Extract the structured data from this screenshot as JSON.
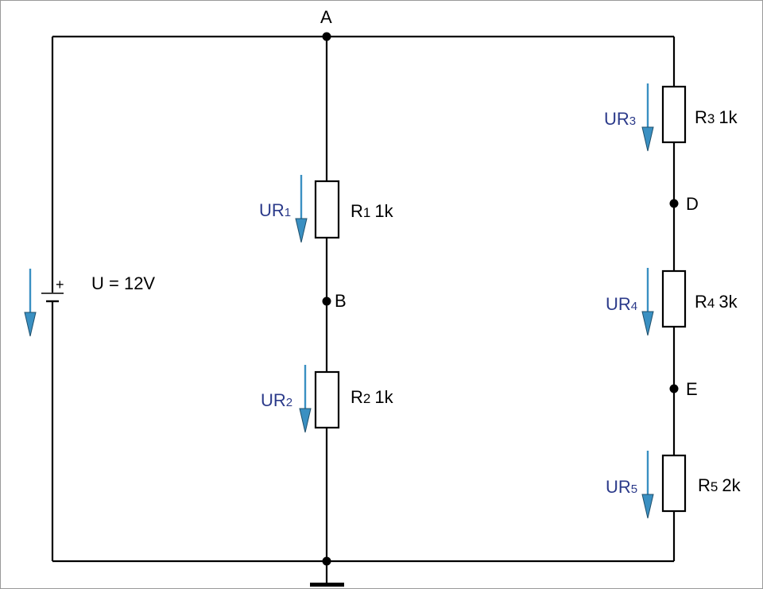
{
  "colors": {
    "wire": "#000000",
    "arrow": "#3a90c2",
    "label_blue": "#2b3a8a",
    "border": "#999999"
  },
  "nodes": {
    "a": "A",
    "b": "B",
    "d": "D",
    "e": "E"
  },
  "source": {
    "plus": "+",
    "label": "U = 12V"
  },
  "resistors": {
    "r1": {
      "letter": "R",
      "sub": "1",
      "value": "1k"
    },
    "r2": {
      "letter": "R",
      "sub": "2",
      "value": "1k"
    },
    "r3": {
      "letter": "R",
      "sub": "3",
      "value": "1k"
    },
    "r4": {
      "letter": "R",
      "sub": "4",
      "value": "3k"
    },
    "r5": {
      "letter": "R",
      "sub": "5",
      "value": "2k"
    }
  },
  "voltages": {
    "ur1": {
      "main": "UR",
      "sub": "1"
    },
    "ur2": {
      "main": "UR",
      "sub": "2"
    },
    "ur3": {
      "main": "UR",
      "sub": "3"
    },
    "ur4": {
      "main": "UR",
      "sub": "4"
    },
    "ur5": {
      "main": "UR",
      "sub": "5"
    }
  },
  "icons": {
    "ground": "ground-icon",
    "battery": "battery-icon",
    "voltage_arrow": "voltage-arrow-icon"
  }
}
